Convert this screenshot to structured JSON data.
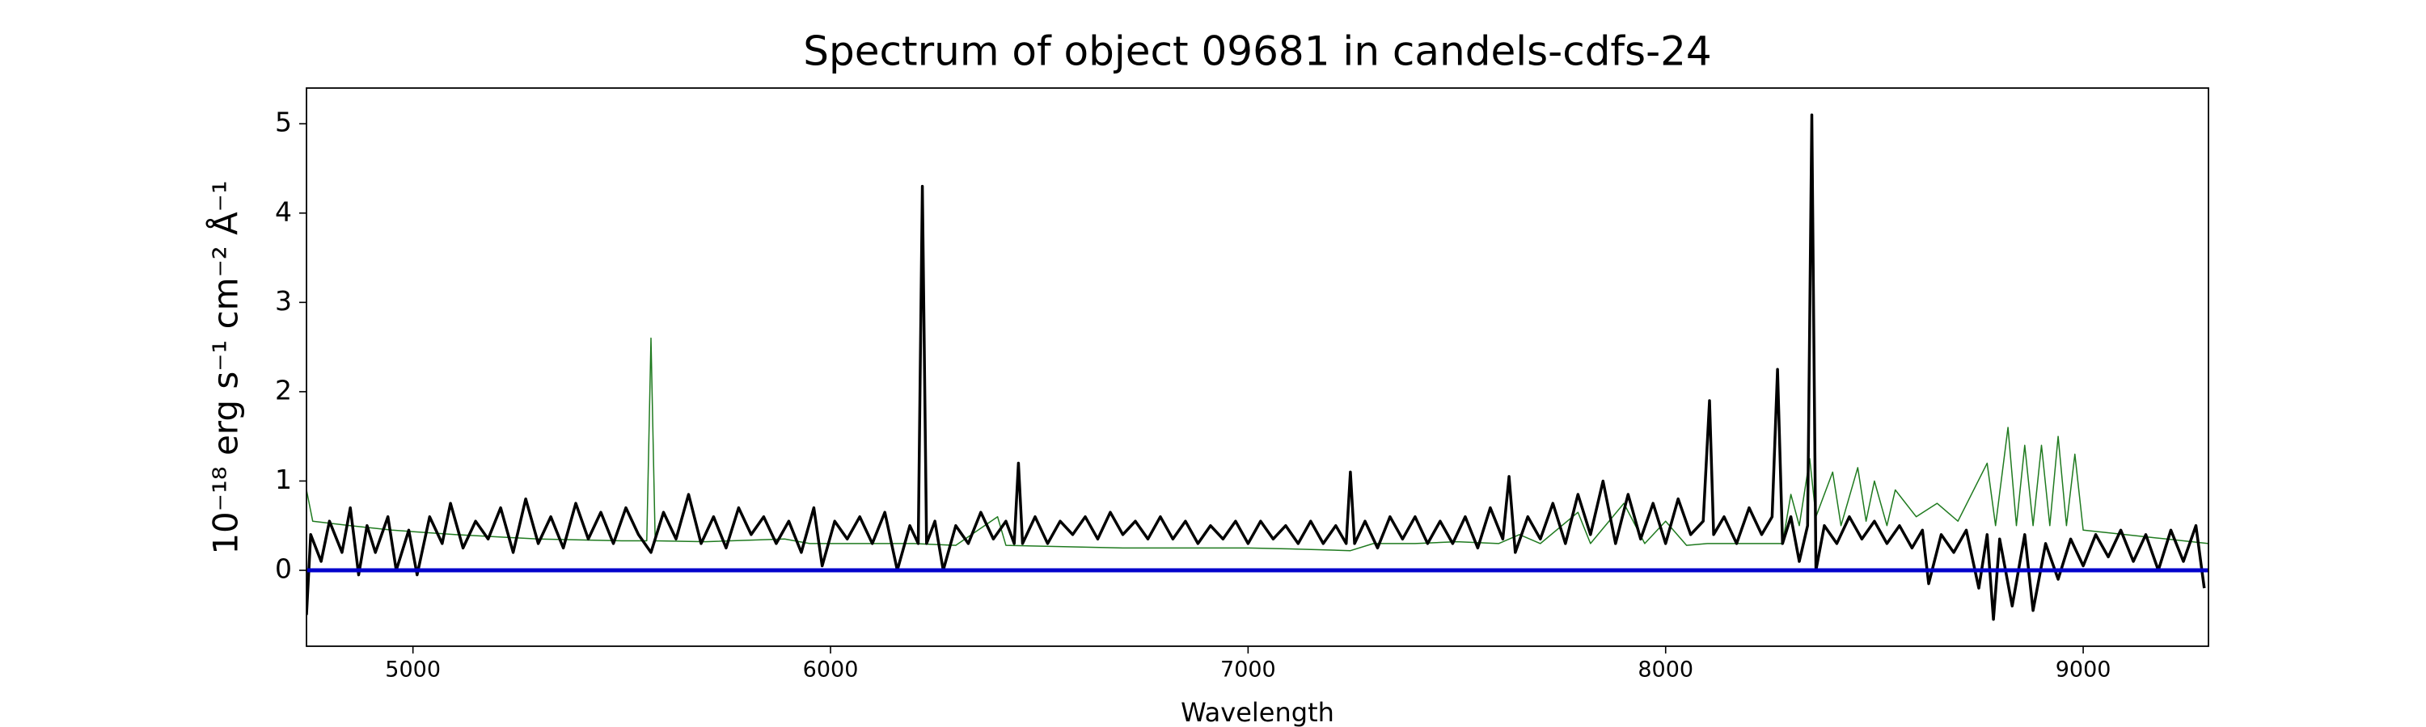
{
  "chart_data": {
    "type": "line",
    "title": "Spectrum of object 09681 in candels-cdfs-24",
    "xlabel": "Wavelength",
    "ylabel": "10⁻¹⁸ erg s⁻¹ cm⁻² Å⁻¹",
    "xlim": [
      4745,
      9300
    ],
    "ylim": [
      -0.85,
      5.4
    ],
    "xticks": [
      5000,
      6000,
      7000,
      8000,
      9000
    ],
    "yticks": [
      0,
      1,
      2,
      3,
      4,
      5
    ],
    "series": [
      {
        "color": "#1f7a1f",
        "width": 1.5,
        "x": [
          4745,
          4760,
          4850,
          4950,
          5100,
          5300,
          5500,
          5560,
          5570,
          5580,
          5700,
          5890,
          5950,
          6100,
          6200,
          6300,
          6400,
          6420,
          6700,
          6900,
          7000,
          7100,
          7245,
          7300,
          7400,
          7500,
          7600,
          7650,
          7700,
          7790,
          7820,
          7900,
          7950,
          8000,
          8050,
          8100,
          8280,
          8300,
          8320,
          8345,
          8360,
          8400,
          8420,
          8460,
          8480,
          8500,
          8530,
          8550,
          8600,
          8650,
          8700,
          8770,
          8790,
          8820,
          8840,
          8860,
          8880,
          8900,
          8920,
          8940,
          8960,
          8980,
          9000,
          9100,
          9200,
          9300
        ],
        "values": [
          0.9,
          0.55,
          0.5,
          0.45,
          0.4,
          0.35,
          0.33,
          0.33,
          2.6,
          0.33,
          0.32,
          0.35,
          0.3,
          0.3,
          0.3,
          0.28,
          0.6,
          0.28,
          0.25,
          0.25,
          0.25,
          0.24,
          0.22,
          0.3,
          0.3,
          0.32,
          0.3,
          0.4,
          0.3,
          0.65,
          0.3,
          0.75,
          0.3,
          0.55,
          0.28,
          0.3,
          0.3,
          0.85,
          0.5,
          1.25,
          0.6,
          1.1,
          0.5,
          1.15,
          0.55,
          1.0,
          0.5,
          0.9,
          0.6,
          0.75,
          0.55,
          1.2,
          0.5,
          1.6,
          0.5,
          1.4,
          0.5,
          1.4,
          0.5,
          1.5,
          0.5,
          1.3,
          0.45,
          0.4,
          0.35,
          0.3
        ]
      },
      {
        "color": "#000000",
        "width": 3.5,
        "x": [
          4745,
          4755,
          4780,
          4800,
          4830,
          4850,
          4870,
          4890,
          4910,
          4940,
          4960,
          4990,
          5010,
          5040,
          5070,
          5090,
          5120,
          5150,
          5180,
          5210,
          5240,
          5270,
          5300,
          5330,
          5360,
          5390,
          5420,
          5450,
          5480,
          5510,
          5540,
          5570,
          5600,
          5630,
          5660,
          5690,
          5720,
          5750,
          5780,
          5810,
          5840,
          5870,
          5900,
          5930,
          5960,
          5980,
          6010,
          6040,
          6070,
          6100,
          6130,
          6160,
          6190,
          6210,
          6220,
          6230,
          6250,
          6270,
          6300,
          6330,
          6360,
          6390,
          6420,
          6440,
          6450,
          6460,
          6490,
          6520,
          6550,
          6580,
          6610,
          6640,
          6670,
          6700,
          6730,
          6760,
          6790,
          6820,
          6850,
          6880,
          6910,
          6940,
          6970,
          7000,
          7030,
          7060,
          7090,
          7120,
          7150,
          7180,
          7210,
          7235,
          7245,
          7255,
          7280,
          7310,
          7340,
          7370,
          7400,
          7430,
          7460,
          7490,
          7520,
          7550,
          7580,
          7610,
          7625,
          7640,
          7670,
          7700,
          7730,
          7760,
          7790,
          7820,
          7850,
          7880,
          7910,
          7940,
          7970,
          8000,
          8030,
          8060,
          8090,
          8105,
          8115,
          8140,
          8170,
          8200,
          8230,
          8255,
          8268,
          8280,
          8300,
          8320,
          8340,
          8350,
          8360,
          8380,
          8410,
          8440,
          8470,
          8500,
          8530,
          8560,
          8590,
          8615,
          8630,
          8660,
          8690,
          8720,
          8750,
          8770,
          8785,
          8800,
          8830,
          8860,
          8880,
          8910,
          8940,
          8970,
          9000,
          9030,
          9060,
          9090,
          9120,
          9150,
          9180,
          9210,
          9240,
          9270,
          9290
        ],
        "values": [
          -0.5,
          0.4,
          0.1,
          0.55,
          0.2,
          0.7,
          -0.05,
          0.5,
          0.2,
          0.6,
          0.0,
          0.45,
          -0.05,
          0.6,
          0.3,
          0.75,
          0.25,
          0.55,
          0.35,
          0.7,
          0.2,
          0.8,
          0.3,
          0.6,
          0.25,
          0.75,
          0.35,
          0.65,
          0.3,
          0.7,
          0.4,
          0.2,
          0.65,
          0.35,
          0.85,
          0.3,
          0.6,
          0.25,
          0.7,
          0.4,
          0.6,
          0.3,
          0.55,
          0.2,
          0.7,
          0.05,
          0.55,
          0.35,
          0.6,
          0.3,
          0.65,
          0.0,
          0.5,
          0.3,
          4.3,
          0.3,
          0.55,
          0.0,
          0.5,
          0.3,
          0.65,
          0.35,
          0.55,
          0.3,
          1.2,
          0.3,
          0.6,
          0.3,
          0.55,
          0.4,
          0.6,
          0.35,
          0.65,
          0.4,
          0.55,
          0.35,
          0.6,
          0.35,
          0.55,
          0.3,
          0.5,
          0.35,
          0.55,
          0.3,
          0.55,
          0.35,
          0.5,
          0.3,
          0.55,
          0.3,
          0.5,
          0.3,
          1.1,
          0.3,
          0.55,
          0.25,
          0.6,
          0.35,
          0.6,
          0.3,
          0.55,
          0.3,
          0.6,
          0.25,
          0.7,
          0.35,
          1.05,
          0.2,
          0.6,
          0.35,
          0.75,
          0.3,
          0.85,
          0.4,
          1.0,
          0.3,
          0.85,
          0.35,
          0.75,
          0.3,
          0.8,
          0.4,
          0.55,
          1.9,
          0.4,
          0.6,
          0.3,
          0.7,
          0.4,
          0.6,
          2.25,
          0.3,
          0.6,
          0.1,
          0.5,
          5.1,
          0.0,
          0.5,
          0.3,
          0.6,
          0.35,
          0.55,
          0.3,
          0.5,
          0.25,
          0.45,
          -0.15,
          0.4,
          0.2,
          0.45,
          -0.2,
          0.4,
          -0.55,
          0.35,
          -0.4,
          0.4,
          -0.45,
          0.3,
          -0.1,
          0.35,
          0.05,
          0.4,
          0.15,
          0.45,
          0.1,
          0.4,
          0.0,
          0.45,
          0.1,
          0.5,
          -0.2
        ]
      },
      {
        "color": "#0000cc",
        "width": 5,
        "x": [
          4745,
          9300
        ],
        "values": [
          0,
          0
        ]
      }
    ]
  }
}
